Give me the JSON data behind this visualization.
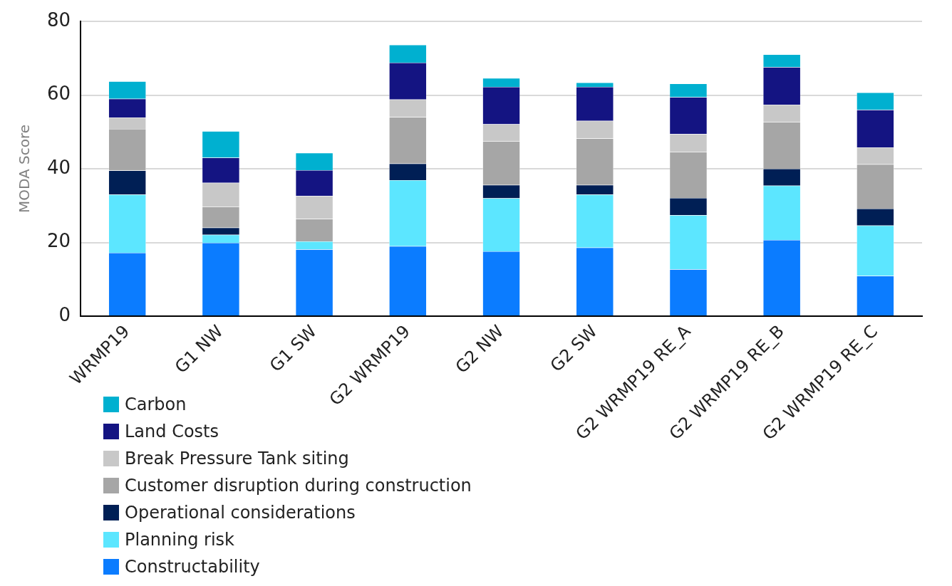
{
  "chart_data": {
    "type": "bar",
    "stacked": true,
    "ylabel": "MODA Score",
    "categories": [
      "WRMP19",
      "G1 NW",
      "G1 SW",
      "G2 WRMP19",
      "G2 NW",
      "G2 SW",
      "G2 WRMP19 RE_A",
      "G2 WRMP19 RE_B",
      "G2 WRMP19 RE_C"
    ],
    "series": [
      {
        "name": "Constructability",
        "color": "#0b7cff",
        "values": [
          17.2,
          19.9,
          18.1,
          19.0,
          17.6,
          18.6,
          12.7,
          20.7,
          10.9
        ]
      },
      {
        "name": "Planning risk",
        "color": "#5ce6ff",
        "values": [
          15.8,
          2.2,
          2.2,
          17.9,
          14.4,
          14.4,
          14.7,
          14.7,
          13.7
        ]
      },
      {
        "name": "Operational considerations",
        "color": "#001f55",
        "values": [
          6.5,
          1.9,
          0,
          4.5,
          3.6,
          2.6,
          4.7,
          4.6,
          4.6
        ]
      },
      {
        "name": "Customer disruption during construction",
        "color": "#a6a6a6",
        "values": [
          11.3,
          5.7,
          6.1,
          12.6,
          11.9,
          12.6,
          12.5,
          12.7,
          12.0
        ]
      },
      {
        "name": "Break Pressure Tank siting",
        "color": "#c8c8c8",
        "values": [
          3.1,
          6.5,
          6.2,
          4.8,
          4.6,
          4.8,
          4.8,
          4.7,
          4.6
        ]
      },
      {
        "name": "Land Costs",
        "color": "#141482",
        "values": [
          5.1,
          6.8,
          7.0,
          10.0,
          10.1,
          9.2,
          10.0,
          10.2,
          10.2
        ]
      },
      {
        "name": "Carbon",
        "color": "#00b0d0",
        "values": [
          4.7,
          7.2,
          4.7,
          4.8,
          2.4,
          1.2,
          3.7,
          3.4,
          4.7
        ]
      }
    ],
    "ylim": [
      0,
      80
    ],
    "yticks": [
      0,
      20,
      40,
      60,
      80
    ],
    "grid": "y",
    "legend": "bottom left"
  }
}
